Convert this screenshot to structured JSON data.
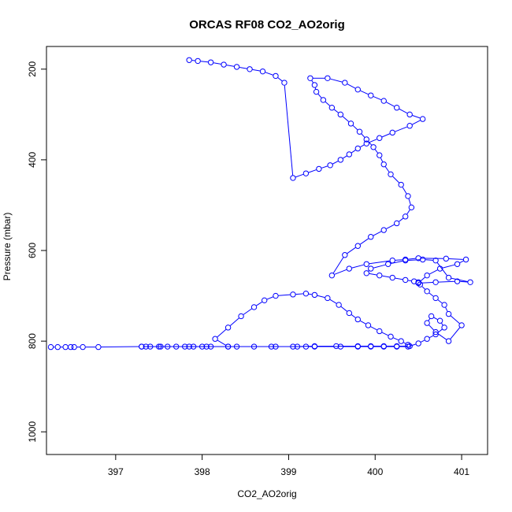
{
  "chart_data": {
    "type": "line",
    "title": "ORCAS RF08 CO2_AO2orig",
    "xlabel": "CO2_AO2orig",
    "ylabel": "Pressure (mbar)",
    "xlim": [
      396.2,
      401.3
    ],
    "ylim": [
      1050,
      150
    ],
    "y_inverted": true,
    "x_ticks": [
      397,
      398,
      399,
      400,
      401
    ],
    "x_tick_labels": [
      "397",
      "398",
      "399",
      "400",
      "401"
    ],
    "y_ticks": [
      200,
      400,
      600,
      800,
      1000
    ],
    "y_tick_labels": [
      "200",
      "400",
      "600",
      "800",
      "1000"
    ],
    "grid": false,
    "legend": "none",
    "series": [
      {
        "color": "#0000ff",
        "marker": "open-circle",
        "x": [
          396.25,
          396.33,
          396.42,
          396.48,
          396.52,
          396.62,
          396.8,
          397.3,
          397.35,
          397.52,
          397.8,
          398.0,
          398.3,
          398.6,
          398.85,
          399.1,
          399.3,
          399.55,
          399.8,
          399.95,
          400.1,
          400.25,
          400.4,
          400.38,
          400.3,
          400.18,
          400.05,
          399.92,
          399.8,
          399.7,
          399.58,
          399.45,
          399.3,
          399.2,
          399.05,
          398.85,
          398.72,
          398.6,
          398.45,
          398.3,
          398.15,
          398.3,
          398.1,
          397.9,
          397.7,
          397.5,
          397.4,
          397.3,
          397.6,
          397.85,
          398.05,
          398.4,
          398.8,
          399.05,
          399.2,
          399.3,
          399.6,
          399.8,
          399.95,
          400.1,
          400.25,
          400.38,
          400.5,
          400.6,
          400.7,
          400.8,
          400.75,
          400.65,
          400.6,
          400.7,
          400.85,
          401.0,
          400.85,
          400.8,
          400.7,
          400.6,
          400.52,
          400.5,
          400.45,
          400.35,
          400.2,
          400.05,
          399.9,
          399.95,
          400.15,
          400.35,
          400.55,
          400.7,
          400.85,
          401.1,
          400.95,
          400.7,
          400.5,
          400.6,
          400.75,
          400.95,
          401.05,
          400.82,
          400.5,
          400.35,
          400.2,
          399.9,
          399.7,
          399.5,
          399.65,
          399.8,
          399.95,
          400.1,
          400.25,
          400.35,
          400.42,
          400.38,
          400.3,
          400.18,
          400.1,
          400.05,
          399.98,
          399.9,
          399.82,
          399.72,
          399.6,
          399.5,
          399.4,
          399.32,
          399.3,
          399.25,
          399.45,
          399.65,
          399.8,
          399.95,
          400.1,
          400.25,
          400.4,
          400.55,
          400.4,
          400.2,
          400.05,
          399.9,
          399.8,
          399.7,
          399.6,
          399.48,
          399.35,
          399.2,
          399.05,
          398.95,
          398.85,
          398.7,
          398.55,
          398.4,
          398.25,
          398.1,
          397.95,
          397.85
        ],
        "y": [
          813,
          813,
          813,
          813,
          813,
          813,
          813,
          812,
          812,
          812,
          812,
          812,
          812,
          812,
          812,
          812,
          811,
          811,
          811,
          811,
          811,
          811,
          811,
          808,
          800,
          790,
          778,
          765,
          752,
          738,
          720,
          705,
          698,
          695,
          697,
          700,
          710,
          725,
          745,
          770,
          795,
          812,
          812,
          812,
          812,
          812,
          812,
          812,
          812,
          812,
          812,
          812,
          812,
          812,
          812,
          812,
          812,
          812,
          812,
          812,
          812,
          812,
          805,
          795,
          785,
          770,
          755,
          745,
          760,
          780,
          800,
          765,
          740,
          720,
          705,
          690,
          675,
          670,
          668,
          665,
          660,
          655,
          650,
          640,
          630,
          622,
          620,
          622,
          660,
          670,
          668,
          670,
          672,
          655,
          640,
          630,
          620,
          618,
          617,
          620,
          622,
          630,
          640,
          655,
          610,
          590,
          570,
          555,
          540,
          525,
          505,
          480,
          455,
          432,
          410,
          390,
          372,
          355,
          338,
          320,
          300,
          285,
          268,
          250,
          235,
          220,
          220,
          230,
          245,
          258,
          270,
          285,
          300,
          310,
          325,
          340,
          352,
          364,
          375,
          388,
          400,
          412,
          420,
          430,
          440,
          230,
          215,
          205,
          200,
          195,
          190,
          185,
          182,
          180
        ]
      }
    ]
  }
}
